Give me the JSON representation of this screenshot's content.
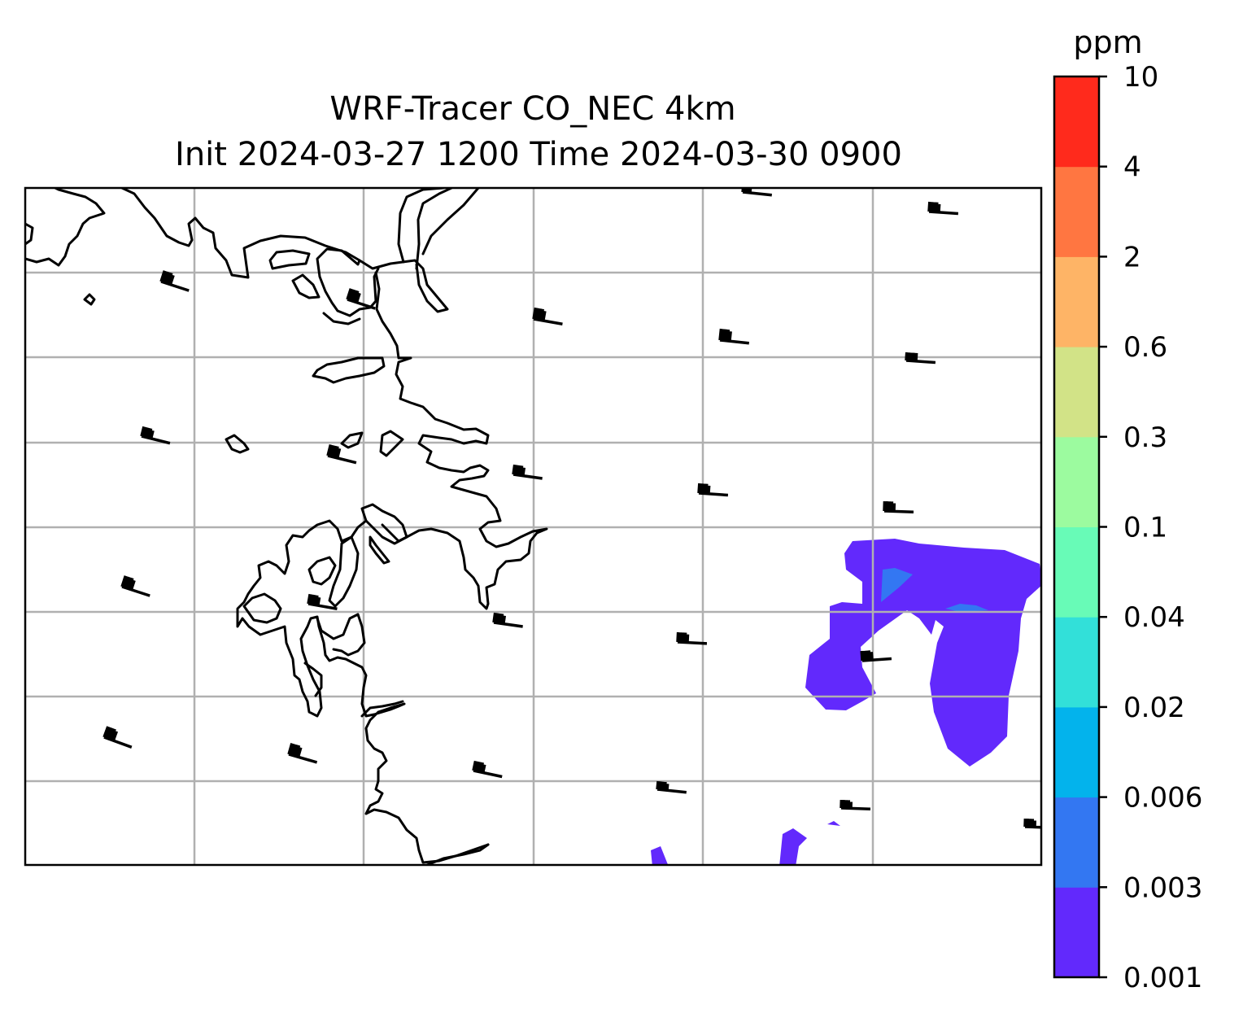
{
  "title": {
    "line1": "WRF-Tracer CO_NEC 4km",
    "line2": "Init 2024-03-27 1200 Time 2024-03-30 0900"
  },
  "colorbar": {
    "unit": "ppm",
    "levels": [
      "0.001",
      "0.003",
      "0.006",
      "0.02",
      "0.04",
      "0.1",
      "0.3",
      "0.6",
      "2",
      "4",
      "10"
    ],
    "colors": [
      "#6229fc",
      "#3377f2",
      "#03b3ec",
      "#32e0d9",
      "#68fbb7",
      "#9cfb9f",
      "#d2e387",
      "#feb466",
      "#ff7641",
      "#ff2a1c"
    ]
  },
  "map": {
    "contours": [
      {
        "level": "0.001",
        "color": "#6229fc",
        "region": "eastern plume"
      },
      {
        "level": "0.003",
        "color": "#3377f2",
        "region": "plume core"
      }
    ],
    "wind_barbs": "uniform westerly flow, pennant-heavy barbs",
    "coastline": "black",
    "gridlines": true
  }
}
